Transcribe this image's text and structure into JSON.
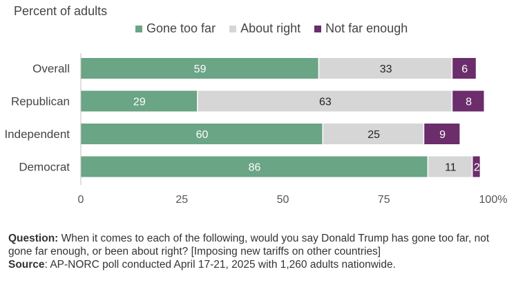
{
  "subtitle": "Percent of adults",
  "chart_data": {
    "type": "bar",
    "orientation": "horizontal",
    "stacked": true,
    "categories": [
      "Overall",
      "Republican",
      "Independent",
      "Democrat"
    ],
    "series": [
      {
        "name": "Gone too far",
        "color": "#6aa585",
        "label_color": "#ffffff",
        "values": [
          59,
          29,
          60,
          86
        ]
      },
      {
        "name": "About right",
        "color": "#d6d6d6",
        "label_color": "#222222",
        "values": [
          33,
          63,
          25,
          11
        ]
      },
      {
        "name": "Not far enough",
        "color": "#6b2d6b",
        "label_color": "#ffffff",
        "values": [
          6,
          8,
          9,
          2
        ]
      }
    ],
    "xlim": [
      0,
      100
    ],
    "xticks": [
      "0",
      "25",
      "50",
      "75",
      "100%"
    ],
    "grid": false,
    "legend_position": "top"
  },
  "footer": {
    "question_label": "Question:",
    "question_text": " When it comes to each of the following, would you say Donald Trump has gone too far, not gone far enough, or been about right? [Imposing new tariffs on other countries]",
    "source_label": "Source",
    "source_text": ": AP-NORC poll conducted April 17-21, 2025 with 1,260 adults nationwide."
  }
}
